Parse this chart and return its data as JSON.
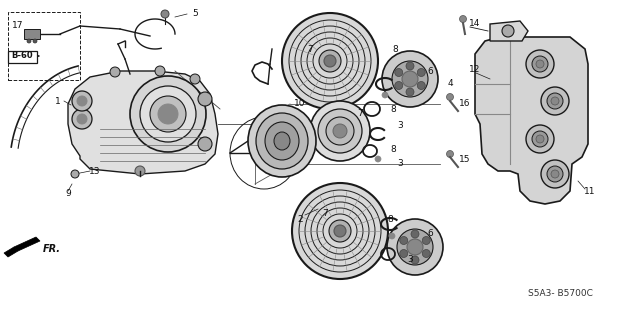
{
  "bg_color": "#ffffff",
  "diagram_code": "S5A3- B5700C",
  "label_B60": "B-60",
  "label_FR": "FR.",
  "line_color": "#1a1a1a",
  "text_color": "#111111",
  "fig_width": 6.4,
  "fig_height": 3.19,
  "dpi": 100,
  "gray_fill": "#c8c8c8",
  "light_gray": "#e0e0e0",
  "dark_gray": "#888888",
  "mid_gray": "#aaaaaa"
}
